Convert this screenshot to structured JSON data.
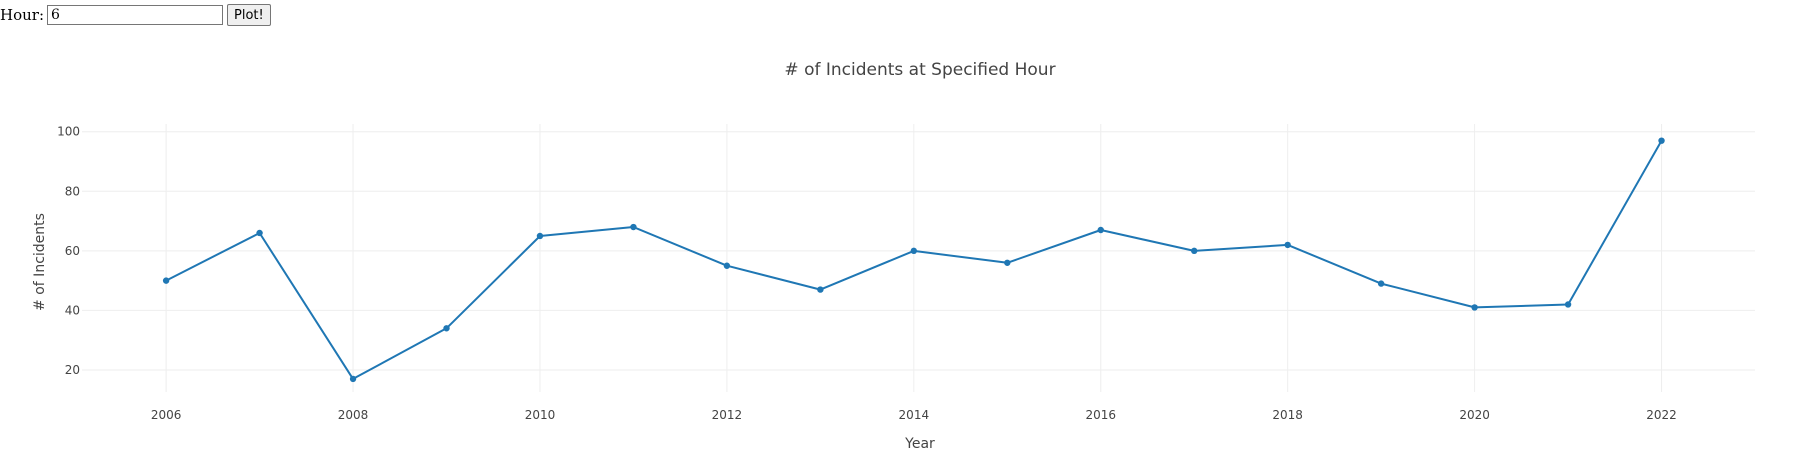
{
  "controls": {
    "hour_label": "Hour:",
    "hour_value": "6",
    "plot_label": "Plot!"
  },
  "chart_data": {
    "type": "line",
    "title": "# of Incidents at Specified Hour",
    "xlabel": "Year",
    "ylabel": "# of Incidents",
    "x": [
      2006,
      2007,
      2008,
      2009,
      2010,
      2011,
      2012,
      2013,
      2014,
      2015,
      2016,
      2017,
      2018,
      2019,
      2020,
      2021,
      2022
    ],
    "series": [
      {
        "values": [
          50,
          66,
          17,
          34,
          65,
          68,
          55,
          47,
          60,
          56,
          67,
          60,
          62,
          49,
          41,
          42,
          97
        ],
        "color": "#1f77b4"
      }
    ],
    "xticks": [
      2006,
      2008,
      2010,
      2012,
      2014,
      2016,
      2018,
      2020,
      2022
    ],
    "yticks": [
      20,
      40,
      60,
      80,
      100
    ],
    "xlim": [
      2005.1,
      2023
    ],
    "ylim": [
      12.6,
      102.6
    ],
    "grid": true,
    "grid_color": "#eeeeee"
  }
}
